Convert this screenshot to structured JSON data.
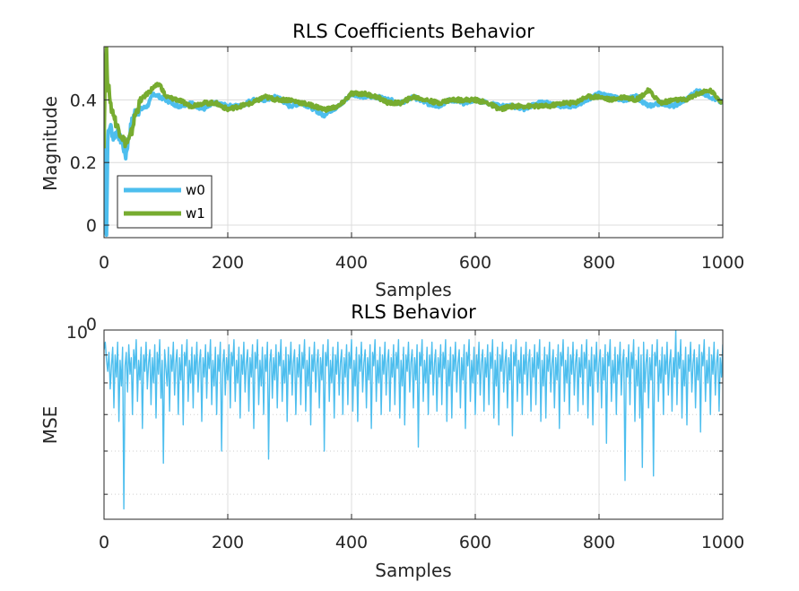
{
  "chart_data": [
    {
      "type": "line",
      "title": "RLS Coefficients Behavior",
      "xlabel": "Samples",
      "ylabel": "Magnitude",
      "xlim": [
        0,
        1000
      ],
      "ylim": [
        -0.04,
        0.57
      ],
      "xticks": [
        0,
        200,
        400,
        600,
        800,
        1000
      ],
      "xtick_labels": [
        "0",
        "200",
        "400",
        "600",
        "800",
        "1000"
      ],
      "yticks": [
        0,
        0.2,
        0.4
      ],
      "ytick_labels": [
        "0",
        "0.2",
        "0.4"
      ],
      "grid": true,
      "legend": "bottom-left",
      "series": [
        {
          "name": "w0",
          "color": "#4DBEEE",
          "x": [
            0,
            2,
            4,
            6,
            8,
            10,
            15,
            20,
            30,
            35,
            40,
            45,
            50,
            60,
            70,
            80,
            90,
            100,
            120,
            140,
            160,
            180,
            200,
            220,
            240,
            260,
            280,
            300,
            320,
            340,
            355,
            360,
            380,
            400,
            420,
            440,
            460,
            480,
            500,
            520,
            540,
            560,
            580,
            600,
            620,
            640,
            660,
            680,
            700,
            720,
            740,
            760,
            780,
            800,
            820,
            840,
            860,
            880,
            900,
            920,
            940,
            960,
            980,
            1000
          ],
          "y": [
            0.25,
            0.0,
            -0.03,
            0.28,
            0.3,
            0.32,
            0.28,
            0.3,
            0.26,
            0.22,
            0.28,
            0.33,
            0.36,
            0.37,
            0.38,
            0.42,
            0.41,
            0.4,
            0.38,
            0.39,
            0.37,
            0.39,
            0.38,
            0.38,
            0.4,
            0.4,
            0.41,
            0.38,
            0.39,
            0.37,
            0.35,
            0.36,
            0.38,
            0.42,
            0.41,
            0.41,
            0.4,
            0.39,
            0.41,
            0.39,
            0.38,
            0.4,
            0.39,
            0.4,
            0.39,
            0.38,
            0.38,
            0.37,
            0.39,
            0.39,
            0.38,
            0.38,
            0.4,
            0.42,
            0.41,
            0.4,
            0.41,
            0.38,
            0.39,
            0.38,
            0.4,
            0.43,
            0.41,
            0.39
          ]
        },
        {
          "name": "w1",
          "color": "#77AC30",
          "x": [
            0,
            2,
            4,
            6,
            8,
            10,
            15,
            20,
            30,
            35,
            40,
            45,
            50,
            60,
            70,
            80,
            90,
            100,
            120,
            140,
            160,
            180,
            200,
            220,
            240,
            260,
            280,
            300,
            320,
            340,
            355,
            360,
            380,
            400,
            420,
            440,
            460,
            480,
            500,
            520,
            540,
            560,
            580,
            600,
            620,
            640,
            660,
            680,
            700,
            720,
            740,
            760,
            780,
            800,
            820,
            840,
            860,
            880,
            900,
            920,
            940,
            960,
            980,
            1000
          ],
          "y": [
            0.26,
            0.5,
            0.56,
            0.42,
            0.46,
            0.38,
            0.36,
            0.32,
            0.28,
            0.26,
            0.27,
            0.3,
            0.35,
            0.4,
            0.42,
            0.44,
            0.45,
            0.41,
            0.4,
            0.38,
            0.39,
            0.39,
            0.37,
            0.38,
            0.39,
            0.41,
            0.4,
            0.4,
            0.39,
            0.38,
            0.37,
            0.37,
            0.38,
            0.42,
            0.42,
            0.41,
            0.39,
            0.39,
            0.41,
            0.4,
            0.39,
            0.4,
            0.4,
            0.4,
            0.39,
            0.37,
            0.38,
            0.38,
            0.38,
            0.38,
            0.39,
            0.39,
            0.41,
            0.41,
            0.4,
            0.41,
            0.4,
            0.43,
            0.39,
            0.4,
            0.4,
            0.42,
            0.43,
            0.39
          ]
        }
      ]
    },
    {
      "type": "line",
      "title": "RLS Behavior",
      "xlabel": "Samples",
      "ylabel": "MSE",
      "xlim": [
        0,
        1000
      ],
      "yscale": "log",
      "ylim": [
        0.45,
        1.0
      ],
      "xticks": [
        0,
        200,
        400,
        600,
        800,
        1000
      ],
      "xtick_labels": [
        "0",
        "200",
        "400",
        "600",
        "800",
        "1000"
      ],
      "yticks": [
        1.0
      ],
      "ytick_labels_base": "10",
      "ytick_labels_exp": "0",
      "grid": true,
      "series": [
        {
          "color": "#4DBEEE",
          "x_start": 0,
          "x_step": 2,
          "y": [
            0.92,
            0.95,
            0.88,
            0.84,
            0.91,
            0.78,
            0.86,
            0.93,
            0.72,
            0.9,
            0.82,
            0.95,
            0.68,
            0.88,
            0.79,
            0.93,
            0.47,
            0.86,
            0.91,
            0.77,
            0.94,
            0.83,
            0.89,
            0.7,
            0.92,
            0.85,
            0.96,
            0.74,
            0.88,
            0.81,
            0.93,
            0.66,
            0.9,
            0.84,
            0.95,
            0.78,
            0.87,
            0.92,
            0.73,
            0.89,
            0.8,
            0.94,
            0.69,
            0.91,
            0.83,
            0.96,
            0.75,
            0.88,
            0.57,
            0.92,
            0.85,
            0.79,
            0.93,
            0.71,
            0.9,
            0.84,
            0.95,
            0.76,
            0.87,
            0.92,
            0.7,
            0.89,
            0.81,
            0.94,
            0.67,
            0.91,
            0.86,
            0.96,
            0.74,
            0.88,
            0.8,
            0.93,
            0.72,
            0.9,
            0.83,
            0.95,
            0.77,
            0.87,
            0.92,
            0.68,
            0.89,
            0.82,
            0.94,
            0.75,
            0.91,
            0.85,
            0.96,
            0.73,
            0.88,
            0.79,
            0.93,
            0.7,
            0.9,
            0.84,
            0.95,
            0.6,
            0.87,
            0.92,
            0.76,
            0.89,
            0.81,
            0.94,
            0.72,
            0.91,
            0.86,
            0.96,
            0.74,
            0.88,
            0.8,
            0.93,
            0.69,
            0.9,
            0.83,
            0.95,
            0.77,
            0.87,
            0.92,
            0.71,
            0.89,
            0.82,
            0.94,
            0.66,
            0.91,
            0.85,
            0.96,
            0.73,
            0.88,
            0.79,
            0.93,
            0.7,
            0.9,
            0.84,
            0.95,
            0.58,
            0.87,
            0.92,
            0.75,
            0.89,
            0.81,
            0.94,
            0.72,
            0.91,
            0.86,
            0.96,
            0.74,
            0.88,
            0.8,
            0.93,
            0.68,
            0.9,
            0.83,
            0.95,
            0.76,
            0.87,
            0.92,
            0.7,
            0.89,
            0.82,
            0.94,
            0.73,
            0.91,
            0.85,
            0.96,
            0.71,
            0.88,
            0.79,
            0.93,
            0.67,
            0.9,
            0.84,
            0.95,
            0.77,
            0.87,
            0.92,
            0.72,
            0.89,
            0.81,
            0.94,
            0.6,
            0.91,
            0.86,
            0.96,
            0.74,
            0.88,
            0.8,
            0.93,
            0.69,
            0.9,
            0.83,
            0.95,
            0.76,
            0.87,
            0.92,
            0.7,
            0.89,
            0.82,
            0.94,
            0.73,
            0.91,
            0.85,
            0.96,
            0.71,
            0.88,
            0.79,
            0.93,
            0.68,
            0.9,
            0.84,
            0.95,
            0.77,
            0.87,
            0.92,
            0.72,
            0.89,
            0.81,
            0.94,
            0.66,
            0.91,
            0.86,
            0.96,
            0.74,
            0.88,
            0.8,
            0.93,
            0.7,
            0.9,
            0.83,
            0.95,
            0.76,
            0.87,
            0.92,
            0.71,
            0.89,
            0.82,
            0.94,
            0.73,
            0.91,
            0.85,
            0.96,
            0.69,
            0.88,
            0.79,
            0.93,
            0.67,
            0.9,
            0.84,
            0.95,
            0.77,
            0.87,
            0.92,
            0.72,
            0.89,
            0.81,
            0.94,
            0.61,
            0.91,
            0.86,
            0.96,
            0.74,
            0.88,
            0.8,
            0.93,
            0.7,
            0.9,
            0.83,
            0.95,
            0.76,
            0.87,
            0.92,
            0.71,
            0.89,
            0.82,
            0.94,
            0.73,
            0.91,
            0.85,
            0.96,
            0.68,
            0.88,
            0.79,
            0.93,
            0.69,
            0.9,
            0.84,
            0.95,
            0.77,
            0.87,
            0.92,
            0.72,
            0.89,
            0.81,
            0.94,
            0.66,
            0.91,
            0.86,
            0.96,
            0.74,
            0.88,
            0.8,
            0.93,
            0.7,
            0.9,
            0.83,
            0.95,
            0.76,
            0.87,
            0.92,
            0.71,
            0.89,
            0.82,
            0.94,
            0.73,
            0.91,
            0.85,
            0.96,
            0.69,
            0.88,
            0.79,
            0.93,
            0.67,
            0.9,
            0.84,
            0.95,
            0.77,
            0.87,
            0.92,
            0.72,
            0.89,
            0.81,
            0.94,
            0.64,
            0.91,
            0.86,
            0.96,
            0.74,
            0.88,
            0.8,
            0.93,
            0.7,
            0.9,
            0.83,
            0.95,
            0.76,
            0.87,
            0.92,
            0.71,
            0.89,
            0.82,
            0.94,
            0.73,
            0.91,
            0.85,
            0.96,
            0.68,
            0.88,
            0.79,
            0.93,
            0.69,
            0.9,
            0.84,
            0.95,
            0.77,
            0.87,
            0.92,
            0.72,
            0.89,
            0.81,
            0.94,
            0.66,
            0.91,
            0.86,
            0.96,
            0.74,
            0.88,
            0.8,
            0.93,
            0.7,
            0.9,
            0.83,
            0.95,
            0.76,
            0.87,
            0.92,
            0.71,
            0.89,
            0.82,
            0.94,
            0.73,
            0.91,
            0.85,
            0.96,
            0.69,
            0.88,
            0.79,
            0.93,
            0.67,
            0.9,
            0.84,
            0.95,
            0.77,
            0.87,
            0.92,
            0.72,
            0.89,
            0.81,
            0.94,
            0.62,
            0.91,
            0.86,
            0.96,
            0.74,
            0.88,
            0.8,
            0.93,
            0.7,
            0.9,
            0.83,
            0.95,
            0.76,
            0.87,
            0.92,
            0.53,
            0.89,
            0.82,
            0.94,
            0.73,
            0.91,
            0.85,
            0.96,
            0.68,
            0.88,
            0.79,
            0.93,
            0.69,
            0.9,
            0.56,
            0.95,
            0.77,
            0.87,
            0.92,
            0.72,
            0.89,
            0.81,
            0.94,
            0.54,
            0.91,
            0.86,
            0.96,
            0.74,
            0.88,
            0.8,
            0.93,
            0.7,
            0.9,
            0.83,
            0.95,
            0.76,
            0.87,
            0.92,
            0.71,
            0.89,
            0.82,
            1.0,
            0.73,
            0.91,
            0.85,
            0.96,
            0.69,
            0.88,
            0.79,
            0.93,
            0.67,
            0.9,
            0.84,
            0.95,
            0.77,
            0.87,
            0.92,
            0.72,
            0.89,
            0.81,
            0.94,
            0.65,
            0.91,
            0.86,
            0.96,
            0.74,
            0.88,
            0.8,
            0.93,
            0.7,
            0.9,
            0.83,
            0.95,
            0.76,
            0.87,
            0.92,
            0.71,
            0.89,
            0.82,
            0.94,
            0.73,
            0.91,
            0.85,
            0.96,
            0.68,
            0.88,
            0.79,
            0.93,
            0.58,
            0.9,
            0.84,
            0.95,
            0.77,
            0.87,
            0.92,
            0.72,
            0.89,
            0.81,
            0.94,
            0.66
          ]
        }
      ]
    }
  ]
}
